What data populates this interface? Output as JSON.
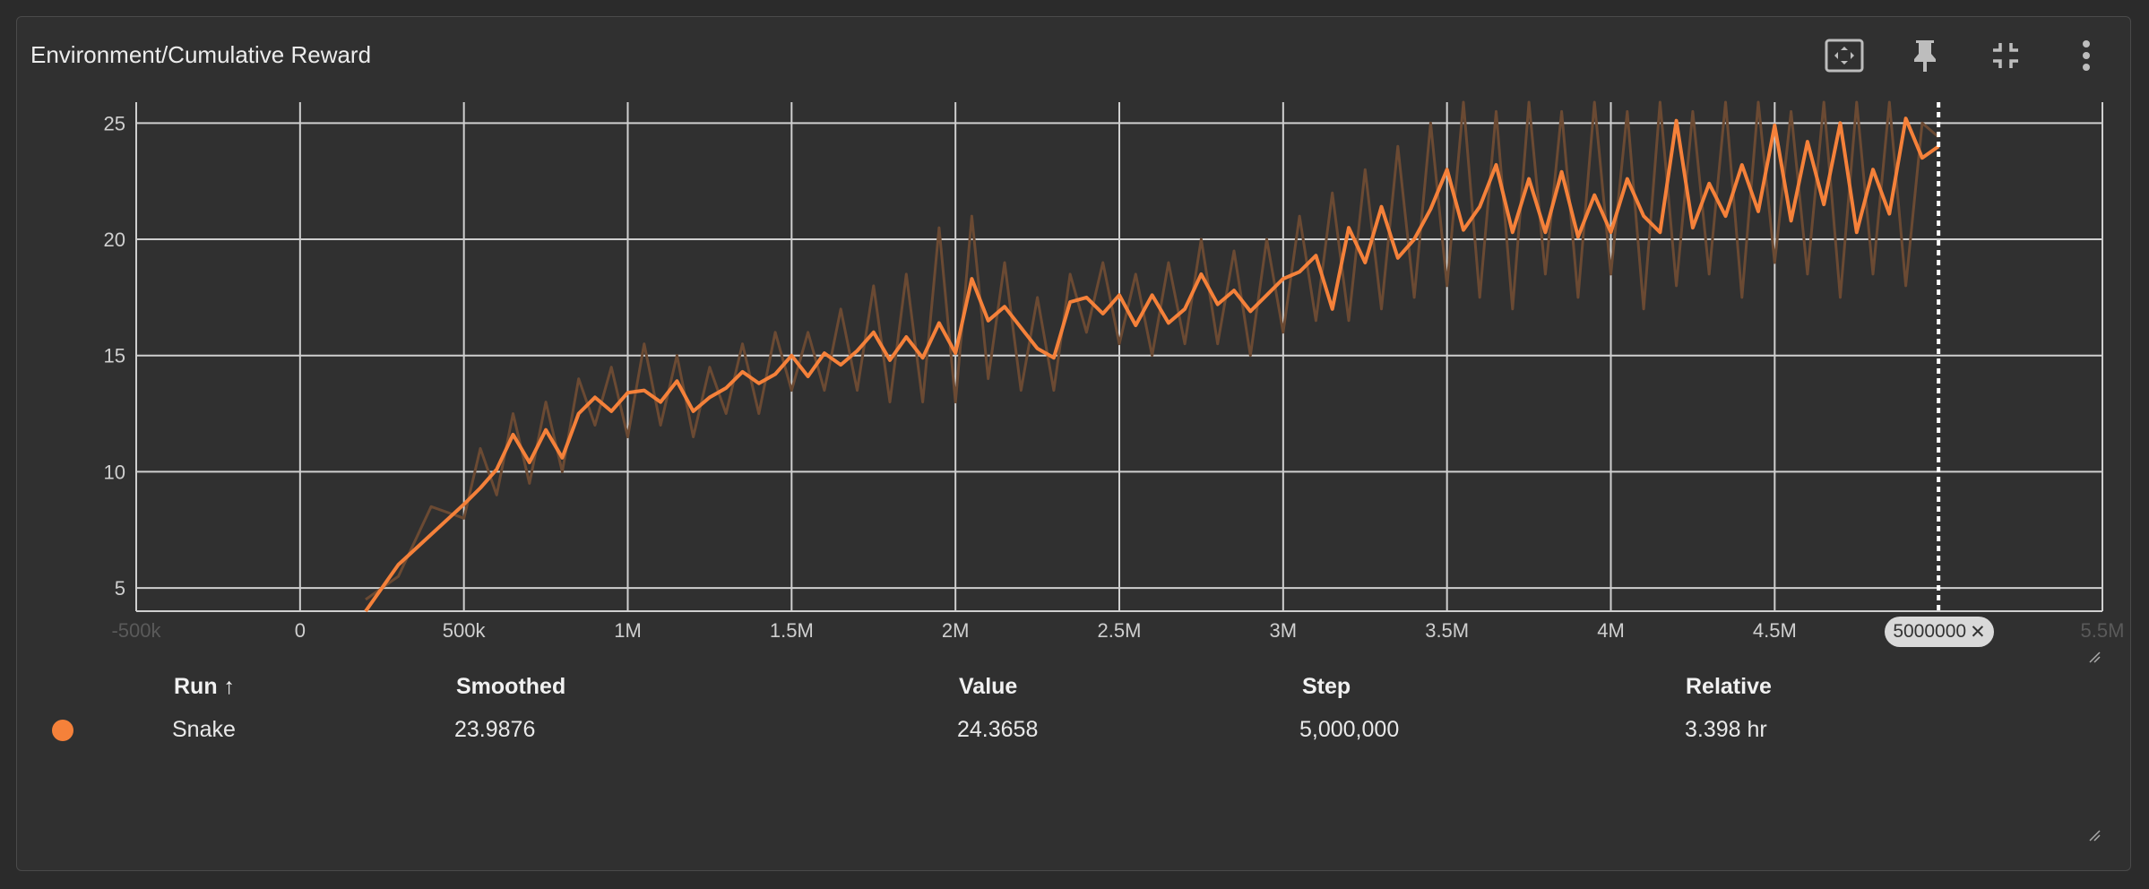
{
  "card": {
    "title": "Environment/Cumulative Reward"
  },
  "toolbar": {
    "fit_icon": "fit-domain-icon",
    "pin_icon": "pin-icon",
    "collapse_icon": "collapse-icon",
    "more_icon": "more-vert-icon"
  },
  "step_chip": {
    "label": "5000000",
    "close": "✕"
  },
  "legend": {
    "headers": {
      "run": "Run ↑",
      "smoothed": "Smoothed",
      "value": "Value",
      "step": "Step",
      "relative": "Relative"
    },
    "rows": [
      {
        "run": "Snake",
        "smoothed": "23.9876",
        "value": "24.3658",
        "step": "5,000,000",
        "relative": "3.398 hr",
        "color": "#f5813a"
      }
    ]
  },
  "chart_data": {
    "type": "line",
    "title": "Environment/Cumulative Reward",
    "x_ticks": [
      {
        "value": -500000,
        "label": "-500k"
      },
      {
        "value": 0,
        "label": "0"
      },
      {
        "value": 500000,
        "label": "500k"
      },
      {
        "value": 1000000,
        "label": "1M"
      },
      {
        "value": 1500000,
        "label": "1.5M"
      },
      {
        "value": 2000000,
        "label": "2M"
      },
      {
        "value": 2500000,
        "label": "2.5M"
      },
      {
        "value": 3000000,
        "label": "3M"
      },
      {
        "value": 3500000,
        "label": "3.5M"
      },
      {
        "value": 4000000,
        "label": "4M"
      },
      {
        "value": 4500000,
        "label": "4.5M"
      },
      {
        "value": 5500000,
        "label": "5.5M"
      }
    ],
    "y_ticks": [
      5,
      10,
      15,
      20,
      25
    ],
    "xlim": [
      -500000,
      5500000
    ],
    "ylim": [
      4,
      25.9
    ],
    "grid": true,
    "cursor_step": 5000000,
    "series": [
      {
        "name": "Snake",
        "color": "#f5813a",
        "raw_color": "#6b4a33",
        "x": [
          200000,
          300000,
          400000,
          500000,
          550000,
          600000,
          650000,
          700000,
          750000,
          800000,
          850000,
          900000,
          950000,
          1000000,
          1050000,
          1100000,
          1150000,
          1200000,
          1250000,
          1300000,
          1350000,
          1400000,
          1450000,
          1500000,
          1550000,
          1600000,
          1650000,
          1700000,
          1750000,
          1800000,
          1850000,
          1900000,
          1950000,
          2000000,
          2050000,
          2100000,
          2150000,
          2200000,
          2250000,
          2300000,
          2350000,
          2400000,
          2450000,
          2500000,
          2550000,
          2600000,
          2650000,
          2700000,
          2750000,
          2800000,
          2850000,
          2900000,
          2950000,
          3000000,
          3050000,
          3100000,
          3150000,
          3200000,
          3250000,
          3300000,
          3350000,
          3400000,
          3450000,
          3500000,
          3550000,
          3600000,
          3650000,
          3700000,
          3750000,
          3800000,
          3850000,
          3900000,
          3950000,
          4000000,
          4050000,
          4100000,
          4150000,
          4200000,
          4250000,
          4300000,
          4350000,
          4400000,
          4450000,
          4500000,
          4550000,
          4600000,
          4650000,
          4700000,
          4750000,
          4800000,
          4850000,
          4900000,
          4950000,
          5000000
        ],
        "smoothed": [
          4.0,
          6.0,
          7.3,
          8.6,
          9.3,
          10.1,
          11.6,
          10.4,
          11.8,
          10.6,
          12.5,
          13.2,
          12.6,
          13.4,
          13.5,
          13.0,
          13.9,
          12.6,
          13.2,
          13.6,
          14.3,
          13.8,
          14.2,
          15.0,
          14.1,
          15.1,
          14.6,
          15.2,
          16.0,
          14.8,
          15.8,
          14.9,
          16.4,
          15.1,
          18.3,
          16.5,
          17.1,
          16.2,
          15.3,
          14.9,
          17.3,
          17.5,
          16.8,
          17.6,
          16.3,
          17.6,
          16.4,
          17.0,
          18.5,
          17.2,
          17.8,
          16.9,
          17.6,
          18.3,
          18.6,
          19.3,
          17.0,
          20.5,
          19.0,
          21.4,
          19.2,
          20.0,
          21.3,
          23.0,
          20.4,
          21.4,
          23.2,
          20.3,
          22.6,
          20.3,
          22.9,
          20.1,
          21.9,
          20.3,
          22.6,
          21.0,
          20.3,
          25.1,
          20.5,
          22.4,
          21.0,
          23.2,
          21.2,
          24.9,
          20.8,
          24.2,
          21.5,
          25.0,
          20.3,
          23.0,
          21.1,
          25.2,
          23.5,
          24.0
        ],
        "raw": [
          4.5,
          5.5,
          8.5,
          8.0,
          11.0,
          9.0,
          12.5,
          9.5,
          13.0,
          10.0,
          14.0,
          12.0,
          14.5,
          11.5,
          15.5,
          12.0,
          15.0,
          11.5,
          14.5,
          12.5,
          15.5,
          12.5,
          16.0,
          13.5,
          16.0,
          13.5,
          17.0,
          13.5,
          18.0,
          13.0,
          18.5,
          13.0,
          20.5,
          13.0,
          21.0,
          14.0,
          19.0,
          13.5,
          17.5,
          13.5,
          18.5,
          16.0,
          19.0,
          15.5,
          18.5,
          15.0,
          19.0,
          15.5,
          20.0,
          15.5,
          19.5,
          15.0,
          20.0,
          16.0,
          21.0,
          16.5,
          22.0,
          16.5,
          23.0,
          17.0,
          24.0,
          17.5,
          25.0,
          18.0,
          26.0,
          17.5,
          25.5,
          17.0,
          26.0,
          18.5,
          25.5,
          17.5,
          26.0,
          18.5,
          25.5,
          17.0,
          26.0,
          18.0,
          25.5,
          18.5,
          26.0,
          17.5,
          26.0,
          19.0,
          25.5,
          18.5,
          26.0,
          17.5,
          26.0,
          18.5,
          26.0,
          18.0,
          25.0,
          24.4
        ]
      }
    ]
  }
}
